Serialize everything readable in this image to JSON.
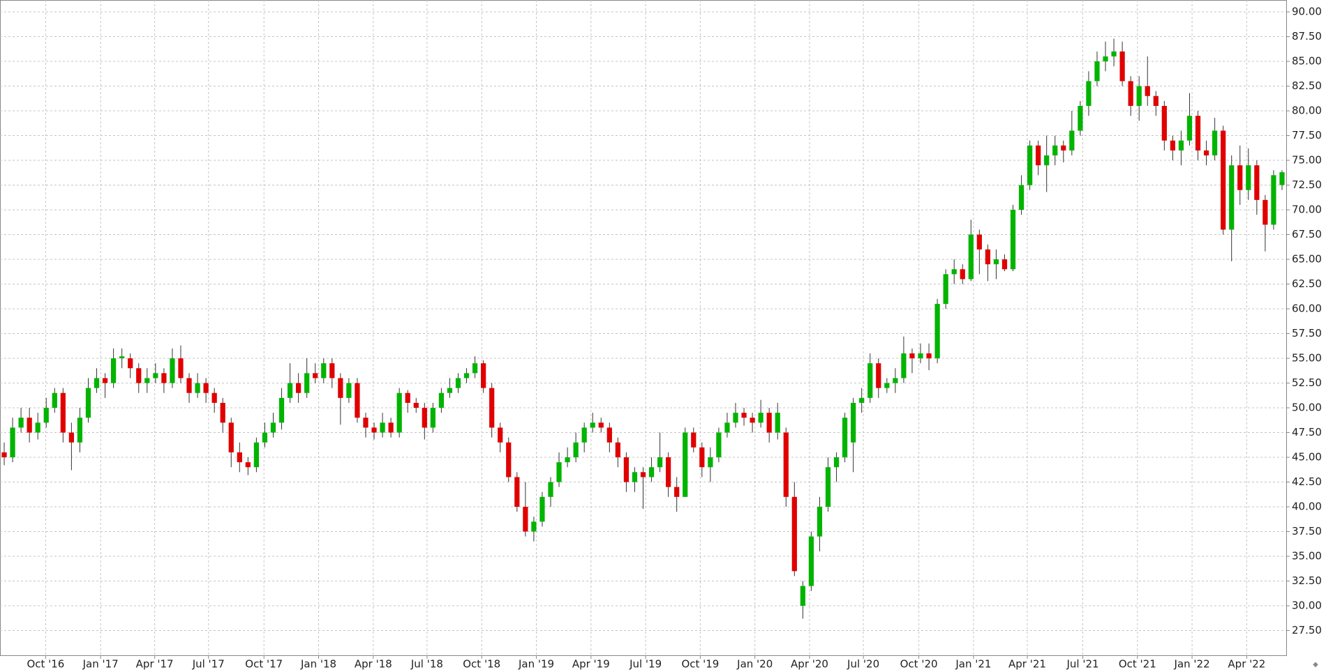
{
  "chart_data": {
    "type": "candlestick",
    "up_color": "#00b400",
    "down_color": "#e00000",
    "wick_color": "#333333",
    "grid": true,
    "xlim": [
      -0.5,
      152.5
    ],
    "xticks": [
      {
        "value": 4.93,
        "label": "Oct '16"
      },
      {
        "value": 11.47,
        "label": "Jan '17"
      },
      {
        "value": 17.9,
        "label": "Apr '17"
      },
      {
        "value": 24.3,
        "label": "Jul '17"
      },
      {
        "value": 30.9,
        "label": "Oct '17"
      },
      {
        "value": 37.4,
        "label": "Jan '18"
      },
      {
        "value": 43.9,
        "label": "Apr '18"
      },
      {
        "value": 50.3,
        "label": "Jul '18"
      },
      {
        "value": 56.8,
        "label": "Oct '18"
      },
      {
        "value": 63.3,
        "label": "Jan '19"
      },
      {
        "value": 69.8,
        "label": "Apr '19"
      },
      {
        "value": 76.3,
        "label": "Jul '19"
      },
      {
        "value": 82.8,
        "label": "Oct '19"
      },
      {
        "value": 89.3,
        "label": "Jan '20"
      },
      {
        "value": 95.8,
        "label": "Apr '20"
      },
      {
        "value": 102.2,
        "label": "Jul '20"
      },
      {
        "value": 108.8,
        "label": "Oct '20"
      },
      {
        "value": 115.3,
        "label": "Jan '21"
      },
      {
        "value": 121.7,
        "label": "Apr '21"
      },
      {
        "value": 128.3,
        "label": "Jul '21"
      },
      {
        "value": 134.8,
        "label": "Oct '21"
      },
      {
        "value": 141.3,
        "label": "Jan '22"
      },
      {
        "value": 147.8,
        "label": "Apr '22"
      }
    ],
    "ylim": [
      25,
      91.2
    ],
    "yticks": [
      {
        "value": 27.5,
        "label": "27.50"
      },
      {
        "value": 30,
        "label": "30.00"
      },
      {
        "value": 32.5,
        "label": "32.50"
      },
      {
        "value": 35,
        "label": "35.00"
      },
      {
        "value": 37.5,
        "label": "37.50"
      },
      {
        "value": 40,
        "label": "40.00"
      },
      {
        "value": 42.5,
        "label": "42.50"
      },
      {
        "value": 45,
        "label": "45.00"
      },
      {
        "value": 47.5,
        "label": "47.50"
      },
      {
        "value": 50,
        "label": "50.00"
      },
      {
        "value": 52.5,
        "label": "52.50"
      },
      {
        "value": 55,
        "label": "55.00"
      },
      {
        "value": 57.5,
        "label": "57.50"
      },
      {
        "value": 60,
        "label": "60.00"
      },
      {
        "value": 62.5,
        "label": "62.50"
      },
      {
        "value": 65,
        "label": "65.00"
      },
      {
        "value": 67.5,
        "label": "67.50"
      },
      {
        "value": 70,
        "label": "70.00"
      },
      {
        "value": 72.5,
        "label": "72.50"
      },
      {
        "value": 75,
        "label": "75.00"
      },
      {
        "value": 77.5,
        "label": "77.50"
      },
      {
        "value": 80,
        "label": "80.00"
      },
      {
        "value": 82.5,
        "label": "82.50"
      },
      {
        "value": 85,
        "label": "85.00"
      },
      {
        "value": 87.5,
        "label": "87.50"
      },
      {
        "value": 90,
        "label": "90.00"
      }
    ],
    "open": [
      45.5,
      45,
      48,
      49,
      47.5,
      48.5,
      50,
      51.5,
      47.5,
      46.5,
      49,
      52,
      53,
      52.5,
      55,
      55,
      54,
      52.5,
      53,
      53.5,
      52.5,
      55,
      53,
      51.5,
      52.5,
      51.5,
      50.5,
      48.5,
      45.5,
      44.5,
      44,
      46.5,
      47.5,
      48.5,
      51,
      52.5,
      51.5,
      53.5,
      53,
      54.5,
      53,
      51,
      52.5,
      49,
      48,
      47.5,
      48.5,
      47.5,
      51.5,
      50.5,
      50,
      48,
      50,
      51.5,
      52,
      53,
      53.5,
      54.5,
      52,
      48,
      46.5,
      43,
      40,
      37.5,
      38.5,
      41,
      42.5,
      44.5,
      45,
      46.5,
      48,
      48.5,
      48,
      46.5,
      45,
      42.5,
      43.5,
      43,
      44,
      45,
      42,
      41,
      47.5,
      46,
      44,
      45,
      47.5,
      48.5,
      49.5,
      49,
      48.5,
      49.5,
      47.5,
      47.5,
      41,
      30,
      32,
      37,
      40,
      44,
      45,
      46.5,
      50.5,
      51,
      54.5,
      52,
      52.5,
      53,
      55.5,
      55,
      55.5,
      55,
      60.5,
      63.5,
      64,
      63,
      67.5,
      66,
      64.5,
      65,
      64,
      70,
      72.5,
      76.5,
      74.5,
      75.5,
      76.5,
      76,
      78,
      80.5,
      83,
      85,
      85.5,
      86,
      83,
      80.5,
      82.5,
      81.5,
      80.5,
      77,
      76,
      77,
      79.5,
      76,
      75.5,
      78,
      68,
      74.5,
      72,
      74.5,
      71,
      68.5,
      72.5
    ],
    "high": [
      46.5,
      49,
      50,
      50,
      49.5,
      51,
      52,
      52,
      48.5,
      50,
      53,
      54,
      53.5,
      56,
      56,
      55.5,
      54.5,
      54,
      54.5,
      54,
      56,
      56.3,
      53.5,
      53.5,
      53,
      52,
      51,
      49,
      46.5,
      45,
      47,
      48.5,
      49.5,
      52,
      54.5,
      53.5,
      55,
      54.5,
      55,
      55,
      53.5,
      53,
      53,
      49.5,
      48.5,
      49.5,
      49,
      52,
      51.8,
      51,
      50.5,
      50.5,
      52,
      53,
      53.5,
      54,
      55.2,
      54.8,
      52.5,
      48.5,
      47,
      43.5,
      42.5,
      39,
      41.5,
      43,
      45.5,
      46,
      47.5,
      48.5,
      49.5,
      49,
      48.5,
      47,
      45.5,
      44,
      44,
      45,
      47.5,
      45.5,
      43,
      48,
      48,
      46.5,
      46,
      48,
      49.5,
      50.5,
      50,
      49.5,
      50.8,
      50,
      50.5,
      48,
      42.5,
      32.5,
      37.5,
      41,
      45,
      45.5,
      49.5,
      51,
      52,
      55.5,
      55,
      53,
      54,
      57.2,
      56,
      56.5,
      56.5,
      61,
      64,
      65,
      64.5,
      69,
      68,
      66.5,
      66,
      65.5,
      70.5,
      73.5,
      77,
      77,
      77.5,
      77.5,
      77,
      80,
      81,
      84,
      86,
      87,
      87.3,
      87,
      83.5,
      83.5,
      85.5,
      82,
      81,
      77.5,
      78,
      81.8,
      80,
      77,
      79.3,
      78.5,
      75.5,
      76.5,
      76.2,
      75,
      71.5,
      74,
      74
    ],
    "low": [
      44.2,
      44.5,
      47.5,
      46.5,
      46.8,
      48,
      49.5,
      46.5,
      43.7,
      45.5,
      48.5,
      51.5,
      51,
      52,
      54,
      53,
      51.5,
      51.5,
      52.5,
      51.5,
      52,
      52.5,
      50.5,
      51,
      50.5,
      49.5,
      47.5,
      44,
      43.5,
      43.2,
      43.5,
      46,
      47,
      47.8,
      50.5,
      50.5,
      51,
      52.5,
      52.5,
      52,
      48.3,
      50.5,
      48.5,
      47,
      46.8,
      47,
      47,
      47,
      49.5,
      49.5,
      46.8,
      47.5,
      49.5,
      51,
      51.5,
      52.5,
      53,
      51.5,
      47,
      45.5,
      42.5,
      39.5,
      37,
      36.5,
      38,
      40,
      42,
      44,
      44.5,
      45.5,
      47.5,
      47.5,
      45.5,
      44,
      41.5,
      41.5,
      39.8,
      42.5,
      43.5,
      41,
      39.5,
      41,
      45.5,
      43,
      42.5,
      44.5,
      47,
      48,
      48.2,
      47.5,
      48,
      46.5,
      46.8,
      40,
      33,
      28.7,
      31.5,
      35.5,
      39.5,
      42.5,
      44.5,
      43.5,
      49.5,
      50.5,
      51,
      51.5,
      51.5,
      52.5,
      53.5,
      54.5,
      53.8,
      54.5,
      60,
      62.5,
      62.5,
      62.8,
      63.5,
      62.8,
      63,
      63.8,
      63.8,
      69.5,
      72,
      73.5,
      71.8,
      74.5,
      74.8,
      75.5,
      77.5,
      79.5,
      82.5,
      84,
      84.5,
      82.5,
      79.5,
      79,
      80.5,
      79.5,
      76,
      75,
      74.5,
      76.5,
      75,
      74.5,
      75,
      67.5,
      64.8,
      70.5,
      71,
      69.5,
      65.8,
      68,
      72
    ],
    "close": [
      45,
      48,
      49,
      47.5,
      48.5,
      50,
      51.5,
      47.5,
      46.5,
      49,
      52,
      53,
      52.5,
      55,
      55.2,
      54,
      52.5,
      53,
      53.5,
      52.5,
      55,
      53,
      51.5,
      52.5,
      51.5,
      50.5,
      48.5,
      45.5,
      44.5,
      44,
      46.5,
      47.5,
      48.5,
      51,
      52.5,
      51.5,
      53.5,
      53,
      54.5,
      53,
      51,
      52.5,
      49,
      48,
      47.5,
      48.5,
      47.5,
      51.5,
      50.5,
      50,
      48,
      50,
      51.5,
      52,
      53,
      53.5,
      54.5,
      52,
      48,
      46.5,
      43,
      40,
      37.5,
      38.5,
      41,
      42.5,
      44.5,
      45,
      46.5,
      48,
      48.5,
      48,
      46.5,
      45,
      42.5,
      43.5,
      43,
      44,
      45,
      42,
      41,
      47.5,
      46,
      44,
      45,
      47.5,
      48.5,
      49.5,
      49,
      48.5,
      49.5,
      47.5,
      49.5,
      41,
      33.5,
      32,
      37,
      40,
      44,
      45,
      49,
      50.5,
      51,
      54.5,
      52,
      52.5,
      53,
      55.5,
      55,
      55.5,
      55,
      60.5,
      63.5,
      64,
      63,
      67.5,
      66,
      64.5,
      65,
      64,
      70,
      72.5,
      76.5,
      74.5,
      75.5,
      76.5,
      76,
      78,
      80.5,
      83,
      85,
      85.5,
      86,
      83,
      80.5,
      82.5,
      81.5,
      80.5,
      77,
      76,
      77,
      79.5,
      76,
      75.5,
      78,
      68,
      74.5,
      72,
      74.5,
      71,
      68.5,
      73.5,
      73.8
    ]
  }
}
